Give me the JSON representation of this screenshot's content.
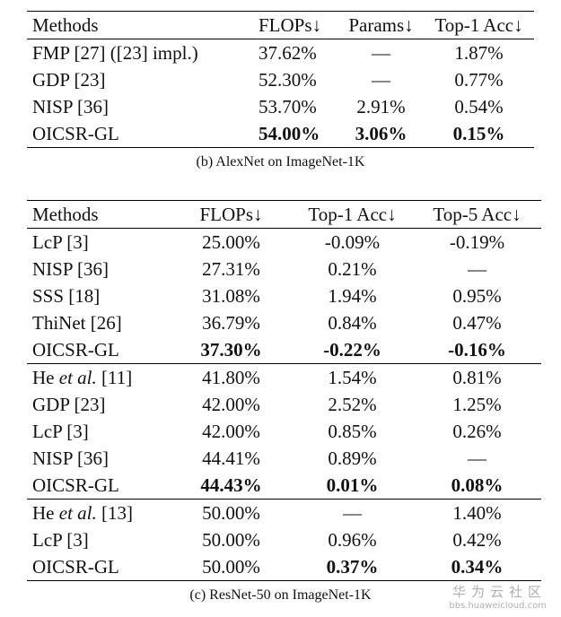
{
  "table_b": {
    "columns": [
      "Methods",
      "FLOPs↓",
      "Params↓",
      "Top-1 Acc↓"
    ],
    "rows": [
      [
        "FMP [27] ([23] impl.)",
        "37.62%",
        "—",
        "1.87%"
      ],
      [
        "GDP [23]",
        "52.30%",
        "—",
        "0.77%"
      ],
      [
        "NISP [36]",
        "53.70%",
        "2.91%",
        "0.54%"
      ],
      [
        "OICSR-GL",
        "54.00%",
        "3.06%",
        "0.15%"
      ]
    ],
    "caption": "(b) AlexNet on ImageNet-1K"
  },
  "table_c": {
    "columns": [
      "Methods",
      "FLOPs↓",
      "Top-1 Acc↓",
      "Top-5 Acc↓"
    ],
    "rows": [
      [
        "LcP [3]",
        "25.00%",
        "-0.09%",
        "-0.19%"
      ],
      [
        "NISP [36]",
        "27.31%",
        "0.21%",
        "—"
      ],
      [
        "SSS [18]",
        "31.08%",
        "1.94%",
        "0.95%"
      ],
      [
        "ThiNet [26]",
        "36.79%",
        "0.84%",
        "0.47%"
      ],
      [
        "OICSR-GL",
        "37.30%",
        "-0.22%",
        "-0.16%"
      ],
      [
        "He",
        "et al.",
        "[11]",
        "41.80%",
        "1.54%",
        "0.81%"
      ],
      [
        "GDP [23]",
        "42.00%",
        "2.52%",
        "1.25%"
      ],
      [
        "LcP [3]",
        "42.00%",
        "0.85%",
        "0.26%"
      ],
      [
        "NISP [36]",
        "44.41%",
        "0.89%",
        "—"
      ],
      [
        "OICSR-GL",
        "44.43%",
        "0.01%",
        "0.08%"
      ],
      [
        "He",
        "et al.",
        "[13]",
        "50.00%",
        "—",
        "1.40%"
      ],
      [
        "LcP [3]",
        "50.00%",
        "0.96%",
        "0.42%"
      ],
      [
        "OICSR-GL",
        "50.00%",
        "0.37%",
        "0.34%"
      ]
    ],
    "caption": "(c) ResNet-50 on ImageNet-1K"
  },
  "watermark": {
    "text": "华为云社区",
    "url": "bbs.huaweicloud.com"
  }
}
